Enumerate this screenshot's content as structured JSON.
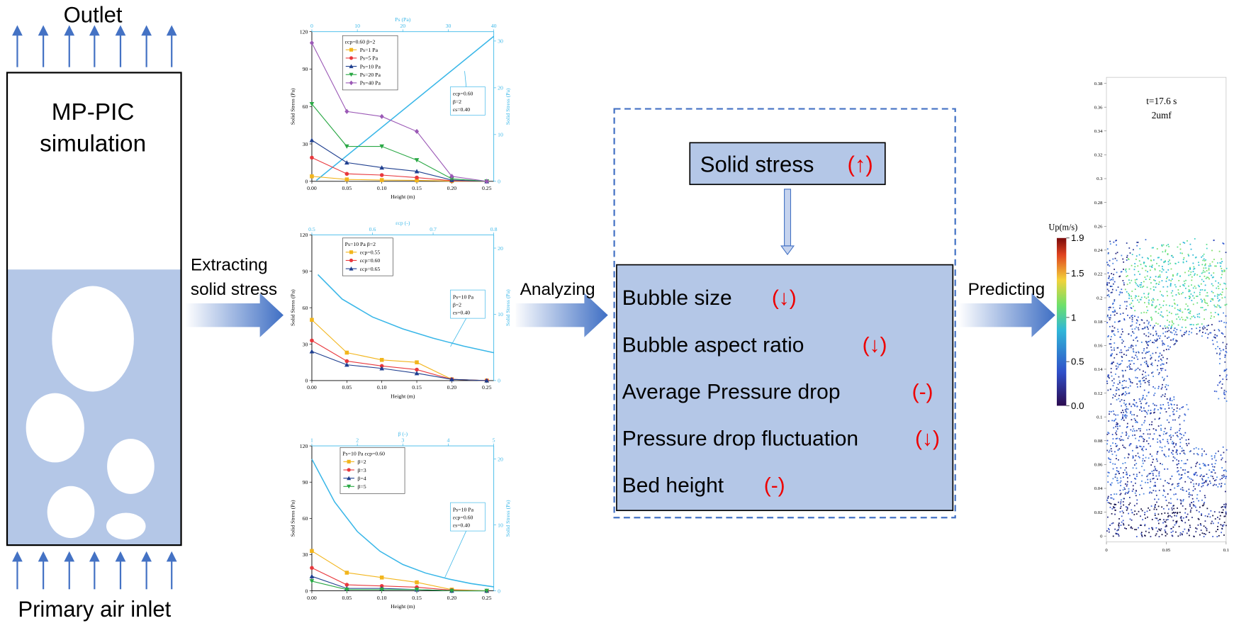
{
  "left": {
    "outlet": "Outlet",
    "title_lines": [
      "MP-PIC",
      "simulation"
    ],
    "inlet": "Primary air inlet"
  },
  "arrows": {
    "extract_lines": [
      "Extracting",
      "solid stress"
    ],
    "analyze": "Analyzing",
    "predict": "Predicting"
  },
  "effects_box": {
    "cause": {
      "text": "Solid stress",
      "trend": "(↑)"
    },
    "effects": [
      {
        "text": "Bubble size",
        "trend": "(↓)"
      },
      {
        "text": "Bubble aspect ratio",
        "trend": "(↓)"
      },
      {
        "text": "Average Pressure drop",
        "trend": "(-)"
      },
      {
        "text": "Pressure drop fluctuation",
        "trend": "(↓)"
      },
      {
        "text": "Bed height",
        "trend": "(-)"
      }
    ]
  },
  "chart_data": [
    {
      "type": "line",
      "xlabel": "Height (m)",
      "ylabel": "Solid Stress (Pa)",
      "y2label": "Solid Stress (Pa)",
      "x2label": "Ps (Pa)",
      "x": [
        0,
        0.05,
        0.1,
        0.15,
        0.2,
        0.25
      ],
      "xlim": [
        0,
        0.26
      ],
      "xticks": [
        {
          "value": 0,
          "label": "0.00"
        },
        {
          "value": 0.05,
          "label": "0.05"
        },
        {
          "value": 0.1,
          "label": "0.10"
        },
        {
          "value": 0.15,
          "label": "0.15"
        },
        {
          "value": 0.2,
          "label": "0.20"
        },
        {
          "value": 0.25,
          "label": "0.25"
        }
      ],
      "ylim": [
        0,
        120
      ],
      "yticks": [
        0,
        30,
        60,
        90,
        120
      ],
      "x2lim": [
        0,
        40
      ],
      "x2ticks": [
        0,
        10,
        20,
        30,
        40
      ],
      "y2lim": [
        0,
        32
      ],
      "y2ticks": [
        0,
        10,
        20,
        30
      ],
      "legend_title": "εcp=0.60   β=2",
      "series": [
        {
          "name": "Ps=1 Pa",
          "color": "#f2b51c",
          "marker": "square",
          "values": [
            4,
            1.5,
            1,
            0.8,
            0.2,
            0
          ]
        },
        {
          "name": "Ps=5 Pa",
          "color": "#e8383d",
          "marker": "circle",
          "values": [
            19,
            6,
            5,
            3,
            0.5,
            0
          ]
        },
        {
          "name": "Ps=10 Pa",
          "color": "#1f3f8f",
          "marker": "triangle",
          "values": [
            33,
            15,
            11,
            8,
            1,
            0
          ]
        },
        {
          "name": "Ps=20 Pa",
          "color": "#2aa845",
          "marker": "triangle-down",
          "values": [
            62,
            28,
            28,
            17,
            2,
            0
          ]
        },
        {
          "name": "Ps=40 Pa",
          "color": "#9b59b6",
          "marker": "diamond",
          "values": [
            111,
            56,
            52,
            40,
            4,
            0
          ]
        }
      ],
      "y2_series": {
        "color": "#3ab7e8",
        "axis": "y2",
        "x": [
          1,
          40
        ],
        "values": [
          0.2,
          31
        ]
      },
      "annotation": [
        "εcp=0.60",
        "β=2",
        "εs=0.40"
      ]
    },
    {
      "type": "line",
      "xlabel": "Height (m)",
      "ylabel": "Solid Stress (Pa)",
      "y2label": "Solid Stress (Pa)",
      "x2label": "εcp (-)",
      "x": [
        0,
        0.05,
        0.1,
        0.15,
        0.2,
        0.25
      ],
      "xlim": [
        0,
        0.26
      ],
      "xticks": [
        {
          "value": 0,
          "label": "0.00"
        },
        {
          "value": 0.05,
          "label": "0.05"
        },
        {
          "value": 0.1,
          "label": "0.10"
        },
        {
          "value": 0.15,
          "label": "0.15"
        },
        {
          "value": 0.2,
          "label": "0.20"
        },
        {
          "value": 0.25,
          "label": "0.25"
        }
      ],
      "ylim": [
        0,
        120
      ],
      "yticks": [
        0,
        30,
        60,
        90,
        120
      ],
      "x2lim": [
        0.5,
        0.8
      ],
      "x2ticks": [
        0.5,
        0.6,
        0.7,
        0.8
      ],
      "y2lim": [
        0,
        22
      ],
      "y2ticks": [
        0,
        10,
        20
      ],
      "legend_title": "Ps=10 Pa   β=2",
      "series": [
        {
          "name": "εcp=0.55",
          "color": "#f2b51c",
          "marker": "square",
          "values": [
            50,
            23,
            17,
            15,
            1,
            0
          ]
        },
        {
          "name": "εcp=0.60",
          "color": "#e8383d",
          "marker": "circle",
          "values": [
            33,
            16,
            12,
            9,
            1,
            0
          ]
        },
        {
          "name": "εcp=0.65",
          "color": "#1f3f8f",
          "marker": "triangle",
          "values": [
            24,
            13,
            10,
            6,
            1,
            0
          ]
        }
      ],
      "y2_series": {
        "color": "#3ab7e8",
        "axis": "y2",
        "x": [
          0.51,
          0.55,
          0.6,
          0.65,
          0.7,
          0.75,
          0.8
        ],
        "values": [
          16,
          12.3,
          9.6,
          7.8,
          6.4,
          5.2,
          4.2
        ]
      },
      "annotation": [
        "Ps=10 Pa",
        "β=2",
        "εs=0.40"
      ]
    },
    {
      "type": "line",
      "xlabel": "Height (m)",
      "ylabel": "Solid Stress (Pa)",
      "y2label": "Solid Stress (Pa)",
      "x2label": "β (-)",
      "x": [
        0,
        0.05,
        0.1,
        0.15,
        0.2,
        0.25
      ],
      "xlim": [
        0,
        0.26
      ],
      "xticks": [
        {
          "value": 0,
          "label": "0.00"
        },
        {
          "value": 0.05,
          "label": "0.05"
        },
        {
          "value": 0.1,
          "label": "0.10"
        },
        {
          "value": 0.15,
          "label": "0.15"
        },
        {
          "value": 0.2,
          "label": "0.20"
        },
        {
          "value": 0.25,
          "label": "0.25"
        }
      ],
      "ylim": [
        0,
        120
      ],
      "yticks": [
        0,
        30,
        60,
        90,
        120
      ],
      "x2lim": [
        1,
        5
      ],
      "x2ticks": [
        1,
        2,
        3,
        4,
        5
      ],
      "y2lim": [
        0,
        22
      ],
      "y2ticks": [
        0,
        10,
        20
      ],
      "legend_title": "Ps=10 Pa   εcp=0.60",
      "series": [
        {
          "name": "β=2",
          "color": "#f2b51c",
          "marker": "square",
          "values": [
            33,
            15,
            11,
            7,
            1,
            0
          ]
        },
        {
          "name": "β=3",
          "color": "#e8383d",
          "marker": "circle",
          "values": [
            19,
            5,
            4,
            3,
            0.5,
            0
          ]
        },
        {
          "name": "β=4",
          "color": "#1f3f8f",
          "marker": "triangle",
          "values": [
            12,
            2,
            2,
            1,
            0,
            0
          ]
        },
        {
          "name": "β=5",
          "color": "#2aa845",
          "marker": "triangle-down",
          "values": [
            8,
            1,
            1,
            1,
            0,
            0
          ]
        }
      ],
      "y2_series": {
        "color": "#3ab7e8",
        "axis": "y2",
        "x": [
          1,
          1.5,
          2,
          2.5,
          3,
          3.5,
          4,
          4.5,
          5
        ],
        "values": [
          20,
          13.5,
          9,
          6,
          4,
          2.7,
          1.8,
          1.1,
          0.6
        ]
      },
      "annotation": [
        "Ps=10 Pa",
        "εcp=0.60",
        "εs=0.40"
      ]
    }
  ],
  "simulation": {
    "time_label": "t=17.6 s",
    "velocity_label": "2umf",
    "xlim": [
      0,
      0.1
    ],
    "xticks": [
      0,
      0.05,
      0.1
    ],
    "ylim": [
      -0.005,
      0.385
    ],
    "yticks": [
      0,
      0.02,
      0.04,
      0.06,
      0.08,
      0.1,
      0.12,
      0.14,
      0.16,
      0.18,
      0.2,
      0.22,
      0.24,
      0.26,
      0.28,
      0.3,
      0.32,
      0.34,
      0.36,
      0.38
    ],
    "colorbar": {
      "label": "Up(m/s)",
      "clim": [
        0,
        1.9
      ],
      "ticks": [
        {
          "value": 0,
          "label": "0.0"
        },
        0.5,
        1,
        1.5,
        1.9
      ]
    }
  }
}
